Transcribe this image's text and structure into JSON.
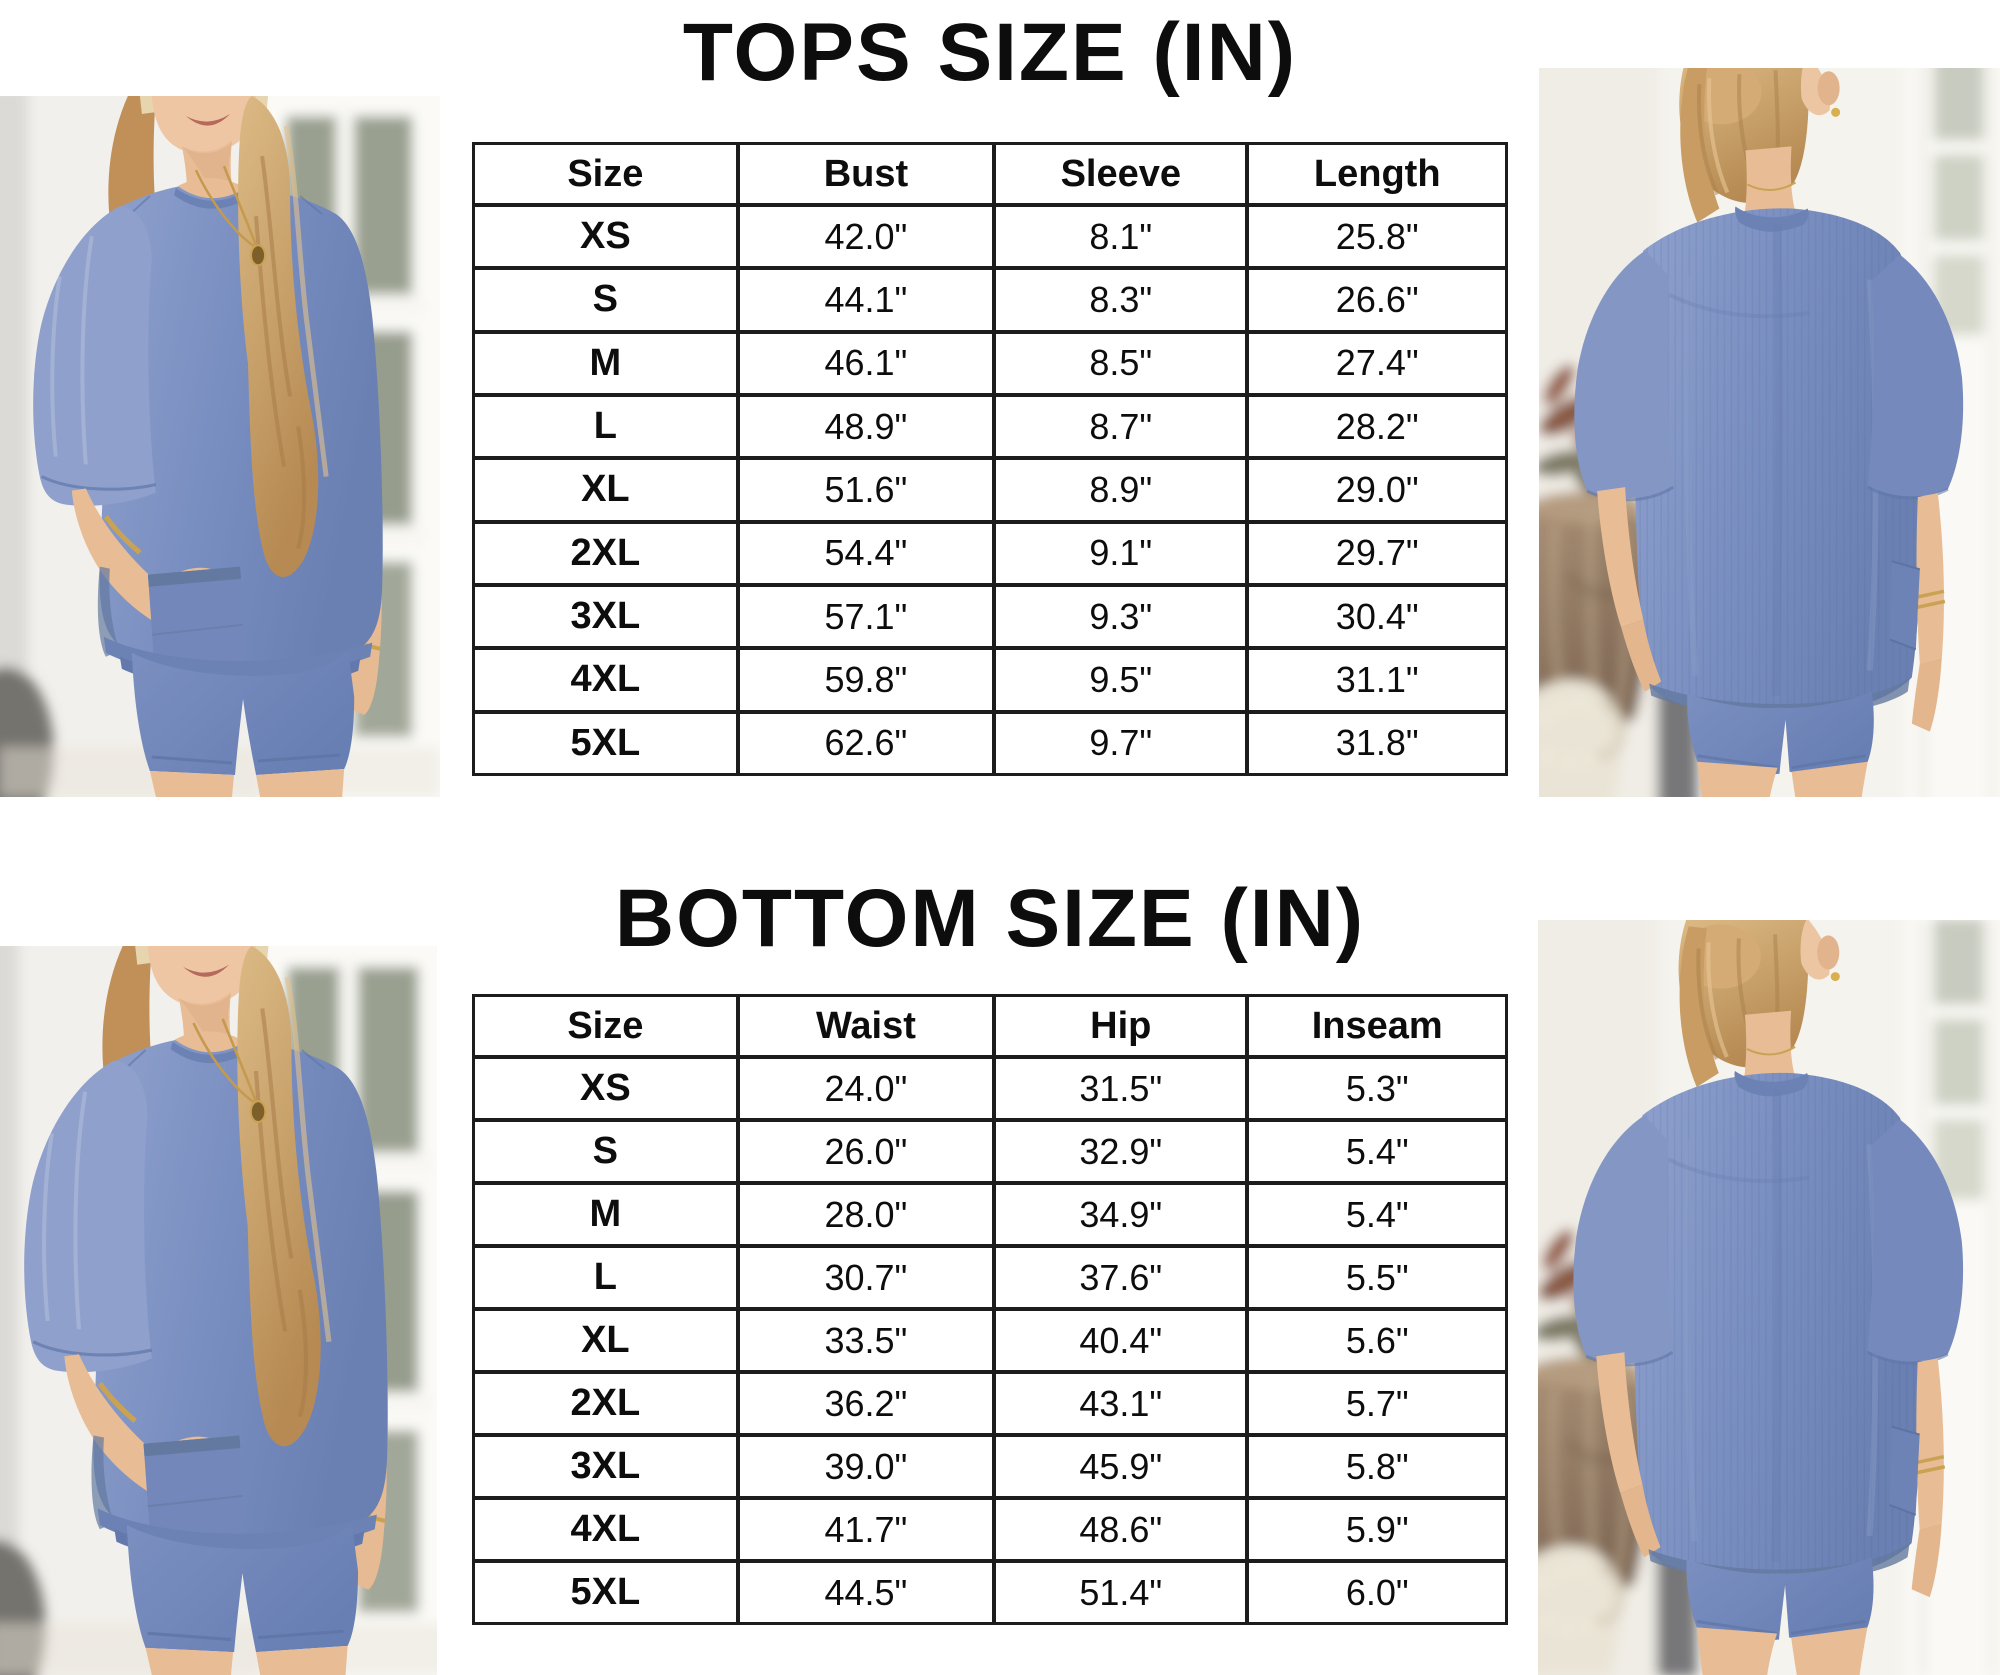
{
  "tops": {
    "title": "TOPS SIZE (IN)",
    "headers": [
      "Size",
      "Bust",
      "Sleeve",
      "Length"
    ],
    "rows": [
      [
        "XS",
        "42.0\"",
        "8.1\"",
        "25.8\""
      ],
      [
        "S",
        "44.1\"",
        "8.3\"",
        "26.6\""
      ],
      [
        "M",
        "46.1\"",
        "8.5\"",
        "27.4\""
      ],
      [
        "L",
        "48.9\"",
        "8.7\"",
        "28.2\""
      ],
      [
        "XL",
        "51.6\"",
        "8.9\"",
        "29.0\""
      ],
      [
        "2XL",
        "54.4\"",
        "9.1\"",
        "29.7\""
      ],
      [
        "3XL",
        "57.1\"",
        "9.3\"",
        "30.4\""
      ],
      [
        "4XL",
        "59.8\"",
        "9.5\"",
        "31.1\""
      ],
      [
        "5XL",
        "62.6\"",
        "9.7\"",
        "31.8\""
      ]
    ]
  },
  "bottoms": {
    "title": "BOTTOM SIZE (IN)",
    "headers": [
      "Size",
      "Waist",
      "Hip",
      "Inseam"
    ],
    "rows": [
      [
        "XS",
        "24.0\"",
        "31.5\"",
        "5.3\""
      ],
      [
        "S",
        "26.0\"",
        "32.9\"",
        "5.4\""
      ],
      [
        "M",
        "28.0\"",
        "34.9\"",
        "5.4\""
      ],
      [
        "L",
        "30.7\"",
        "37.6\"",
        "5.5\""
      ],
      [
        "XL",
        "33.5\"",
        "40.4\"",
        "5.6\""
      ],
      [
        "2XL",
        "36.2\"",
        "43.1\"",
        "5.7\""
      ],
      [
        "3XL",
        "39.0\"",
        "45.9\"",
        "5.8\""
      ],
      [
        "4XL",
        "41.7\"",
        "48.6\"",
        "5.9\""
      ],
      [
        "5XL",
        "44.5\"",
        "51.4\"",
        "6.0\""
      ]
    ]
  },
  "photos": {
    "top_left": "model-front-view",
    "top_right": "model-back-view",
    "bottom_left": "model-front-view",
    "bottom_right": "model-back-view"
  },
  "colors": {
    "text": "#0d0d0d",
    "table_border": "#1c1c1c",
    "tee_blue": "#7b90c2",
    "shorts_blue": "#6d84ba",
    "background": "#ffffff"
  }
}
